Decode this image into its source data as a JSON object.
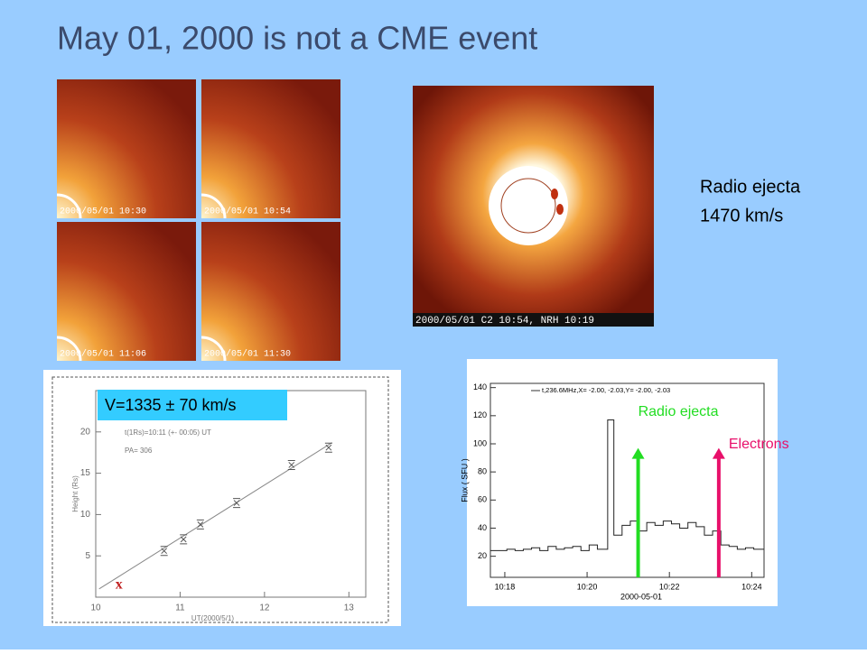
{
  "title": "May 01, 2000 is not a CME event",
  "lasco_frames": [
    "2000/05/01 10:30",
    "2000/05/01 10:54",
    "2000/05/01 11:06",
    "2000/05/01 11:30"
  ],
  "composite_caption": "2000/05/01 C2 10:54, NRH 10:19",
  "radio_note": [
    "Radio ejecta",
    "1470 km/s"
  ],
  "height_plot": {
    "velocity_label": "V=1335 ± 70 km/s",
    "annotations": [
      "t(1Rs)=10:11 (+- 00:05) UT",
      "PA= 306"
    ],
    "xlabel": "UT(2000/5/1)",
    "ylabel": "Height (Rs)",
    "xlim": [
      10,
      13.2
    ],
    "xticks": [
      10,
      11,
      12,
      13
    ],
    "ylim": [
      0,
      25
    ],
    "yticks": [
      5,
      10,
      15,
      20
    ],
    "marker": "x",
    "points": {
      "x": [
        10.81,
        11.04,
        11.24,
        11.67,
        12.32,
        12.76
      ],
      "y": [
        5.6,
        7.0,
        8.8,
        11.4,
        16.0,
        18.1
      ]
    },
    "fit_line": {
      "x": [
        10.04,
        12.8
      ],
      "y": [
        1.0,
        18.7
      ]
    }
  },
  "flux_plot": {
    "legend": "t,236.6MHz,X= -2.00, -2.03,Y= -2.00, -2.03",
    "ylabel": "Flux ( SFU )",
    "xlabel": "2000-05-01",
    "xlim": [
      17.65,
      24.3
    ],
    "xticks": [
      {
        "value": 18,
        "label": "10:18"
      },
      {
        "value": 20,
        "label": "10:20"
      },
      {
        "value": 22,
        "label": "10:22"
      },
      {
        "value": 24,
        "label": "10:24"
      }
    ],
    "ylim": [
      5,
      143
    ],
    "yticks": [
      20,
      40,
      60,
      80,
      100,
      120,
      140
    ],
    "series": {
      "x": [
        17.65,
        17.85,
        18.05,
        18.25,
        18.45,
        18.65,
        18.85,
        19.05,
        19.25,
        19.45,
        19.65,
        19.85,
        20.05,
        20.25,
        20.5,
        20.65,
        20.85,
        21.05,
        21.25,
        21.45,
        21.65,
        21.85,
        22.05,
        22.25,
        22.45,
        22.65,
        22.85,
        23.05,
        23.25,
        23.45,
        23.65,
        23.85,
        24.05
      ],
      "y": [
        24,
        24,
        25,
        24,
        25,
        26,
        24,
        27,
        25,
        26,
        27,
        24,
        28,
        25,
        117,
        35,
        42,
        45,
        38,
        44,
        42,
        45,
        43,
        40,
        44,
        41,
        35,
        38,
        28,
        27,
        25,
        26,
        25
      ]
    },
    "arrows": [
      {
        "label": "Radio ejecta",
        "color": "#22dd22",
        "x": 21.24,
        "top": 97
      },
      {
        "label": "Electrons",
        "color": "#e8106a",
        "x": 23.2,
        "top": 97
      }
    ]
  }
}
